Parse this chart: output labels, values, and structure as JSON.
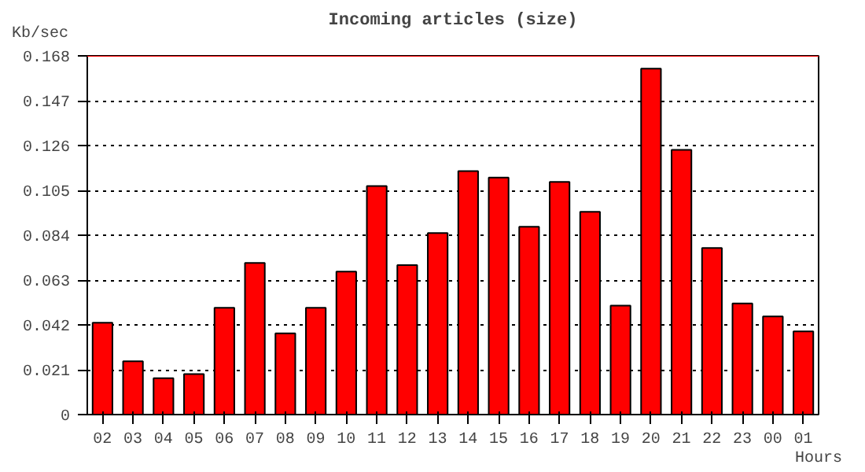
{
  "chart_data": {
    "type": "bar",
    "title": "Incoming articles (size)",
    "ylabel": "Kb/sec",
    "xlabel": "Hours",
    "categories": [
      "02",
      "03",
      "04",
      "05",
      "06",
      "07",
      "08",
      "09",
      "10",
      "11",
      "12",
      "13",
      "14",
      "15",
      "16",
      "17",
      "18",
      "19",
      "20",
      "21",
      "22",
      "23",
      "00",
      "01"
    ],
    "values": [
      0.043,
      0.025,
      0.017,
      0.019,
      0.05,
      0.071,
      0.038,
      0.05,
      0.067,
      0.107,
      0.07,
      0.085,
      0.114,
      0.111,
      0.088,
      0.109,
      0.095,
      0.051,
      0.162,
      0.124,
      0.078,
      0.052,
      0.046,
      0.039
    ],
    "color": "#ff0000",
    "ylim": [
      0,
      0.168
    ],
    "yticks": [
      0,
      0.021,
      0.042,
      0.063,
      0.084,
      0.105,
      0.126,
      0.147,
      0.168
    ],
    "grid": "y",
    "line_style": "dotted",
    "ref_lines": [
      {
        "axis": "y",
        "value": 0.168,
        "color": "#ff0000"
      }
    ]
  }
}
